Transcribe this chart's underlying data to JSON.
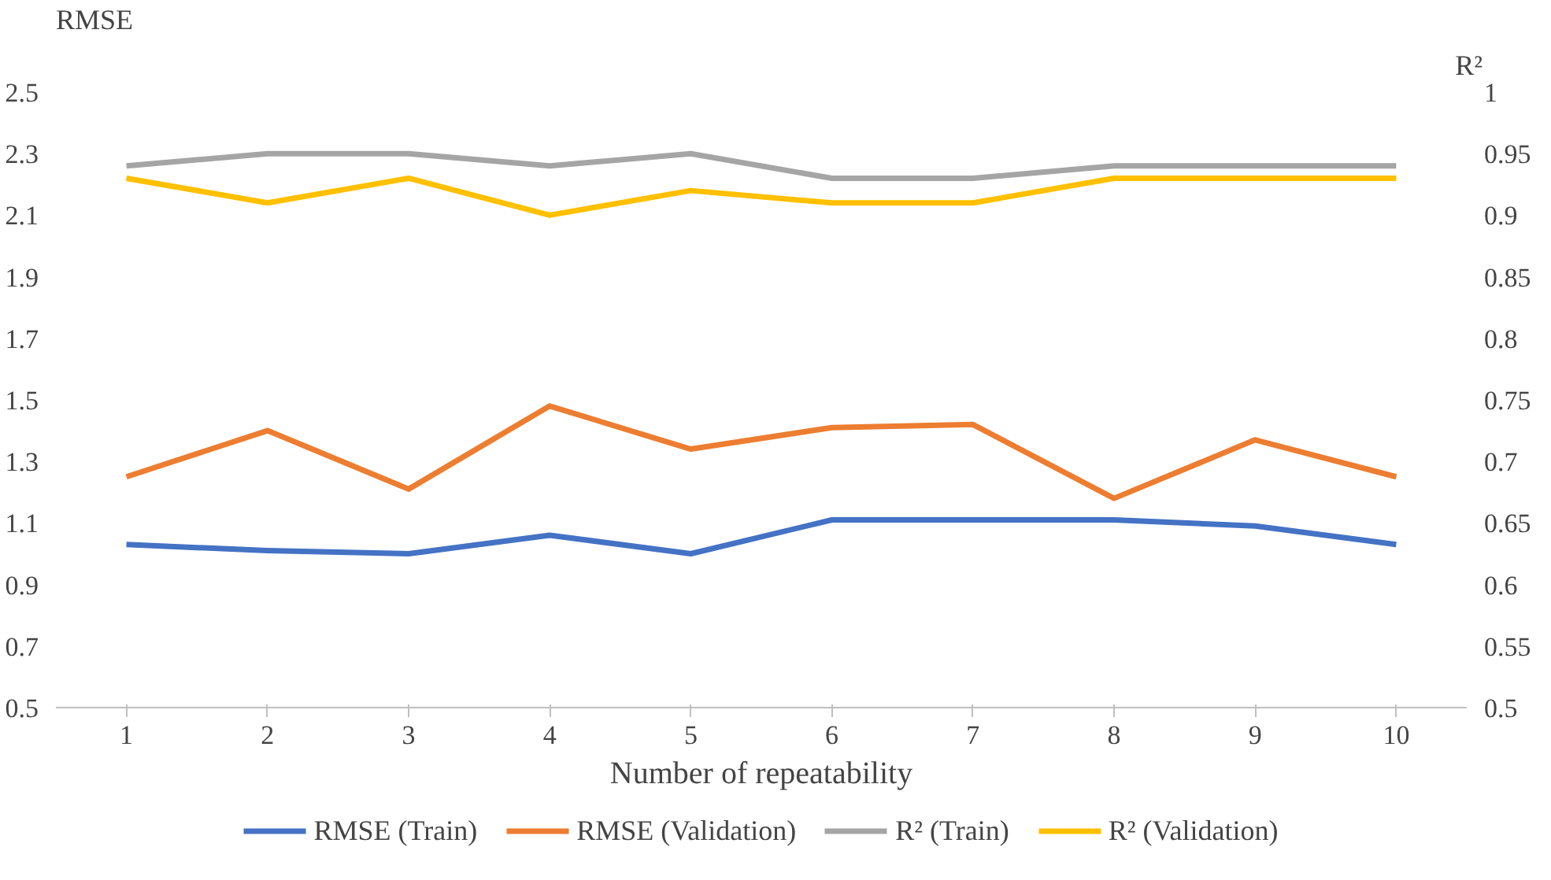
{
  "chart_data": {
    "type": "line",
    "xlabel": "Number of repeatability",
    "ylabel": "RMSE",
    "y2label": "R²",
    "categories": [
      "1",
      "2",
      "3",
      "4",
      "5",
      "6",
      "7",
      "8",
      "9",
      "10"
    ],
    "series": [
      {
        "name": "RMSE (Train)",
        "color": "#4472c4",
        "values": [
          1.03,
          1.01,
          1.0,
          1.06,
          1.0,
          1.11,
          1.11,
          1.11,
          1.09,
          1.03
        ]
      },
      {
        "name": "RMSE (Validation)",
        "color": "#ed7d31",
        "values": [
          1.25,
          1.4,
          1.21,
          1.48,
          1.34,
          1.41,
          1.42,
          1.18,
          1.37,
          1.25
        ]
      },
      {
        "name": "R² (Train)",
        "color": "#a5a5a5",
        "axis": "y2",
        "values": [
          0.94,
          0.95,
          0.95,
          0.94,
          0.95,
          0.93,
          0.93,
          0.94,
          0.94,
          0.94
        ]
      },
      {
        "name": "R² (Validation)",
        "color": "#ffc000",
        "axis": "y2",
        "values": [
          0.93,
          0.91,
          0.93,
          0.9,
          0.92,
          0.91,
          0.91,
          0.93,
          0.93,
          0.93
        ]
      }
    ],
    "ylim": [
      0.5,
      2.5
    ],
    "yticks": [
      0.5,
      0.7,
      0.9,
      1.1,
      1.3,
      1.5,
      1.7,
      1.9,
      2.1,
      2.3,
      2.5
    ],
    "y2lim": [
      0.5,
      1
    ],
    "y2ticks": [
      0.5,
      0.55,
      0.6,
      0.65,
      0.7,
      0.75,
      0.8,
      0.85,
      0.9,
      0.95,
      1
    ],
    "grid": false,
    "legend": "bottom",
    "marker": "none",
    "line_style": "solid"
  }
}
